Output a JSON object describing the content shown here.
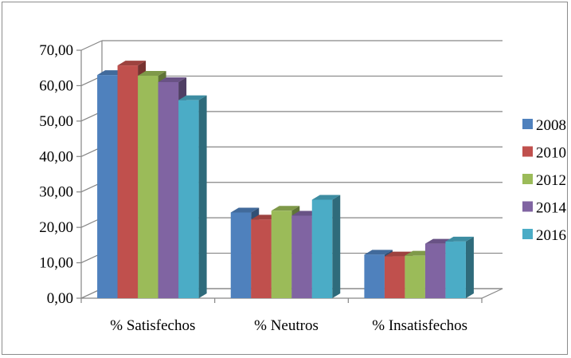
{
  "chart_data": {
    "type": "bar",
    "categories": [
      "% Satisfechos",
      "% Neutros",
      "% Insatisfechos"
    ],
    "series": [
      {
        "name": "2008",
        "values": [
          63.0,
          24.2,
          12.3
        ],
        "color": "#4f81bd"
      },
      {
        "name": "2010",
        "values": [
          65.7,
          22.2,
          11.8
        ],
        "color": "#c0504d"
      },
      {
        "name": "2012",
        "values": [
          62.8,
          24.7,
          12.0
        ],
        "color": "#9bbb59"
      },
      {
        "name": "2014",
        "values": [
          61.0,
          23.3,
          15.4
        ],
        "color": "#8064a2"
      },
      {
        "name": "2016",
        "values": [
          55.9,
          27.8,
          16.0
        ],
        "color": "#4bacc6"
      }
    ],
    "ylim": [
      0,
      70
    ],
    "yticks": [
      "0,00",
      "10,00",
      "20,00",
      "30,00",
      "40,00",
      "50,00",
      "60,00",
      "70,00"
    ],
    "legend_position": "right",
    "grid": true
  }
}
